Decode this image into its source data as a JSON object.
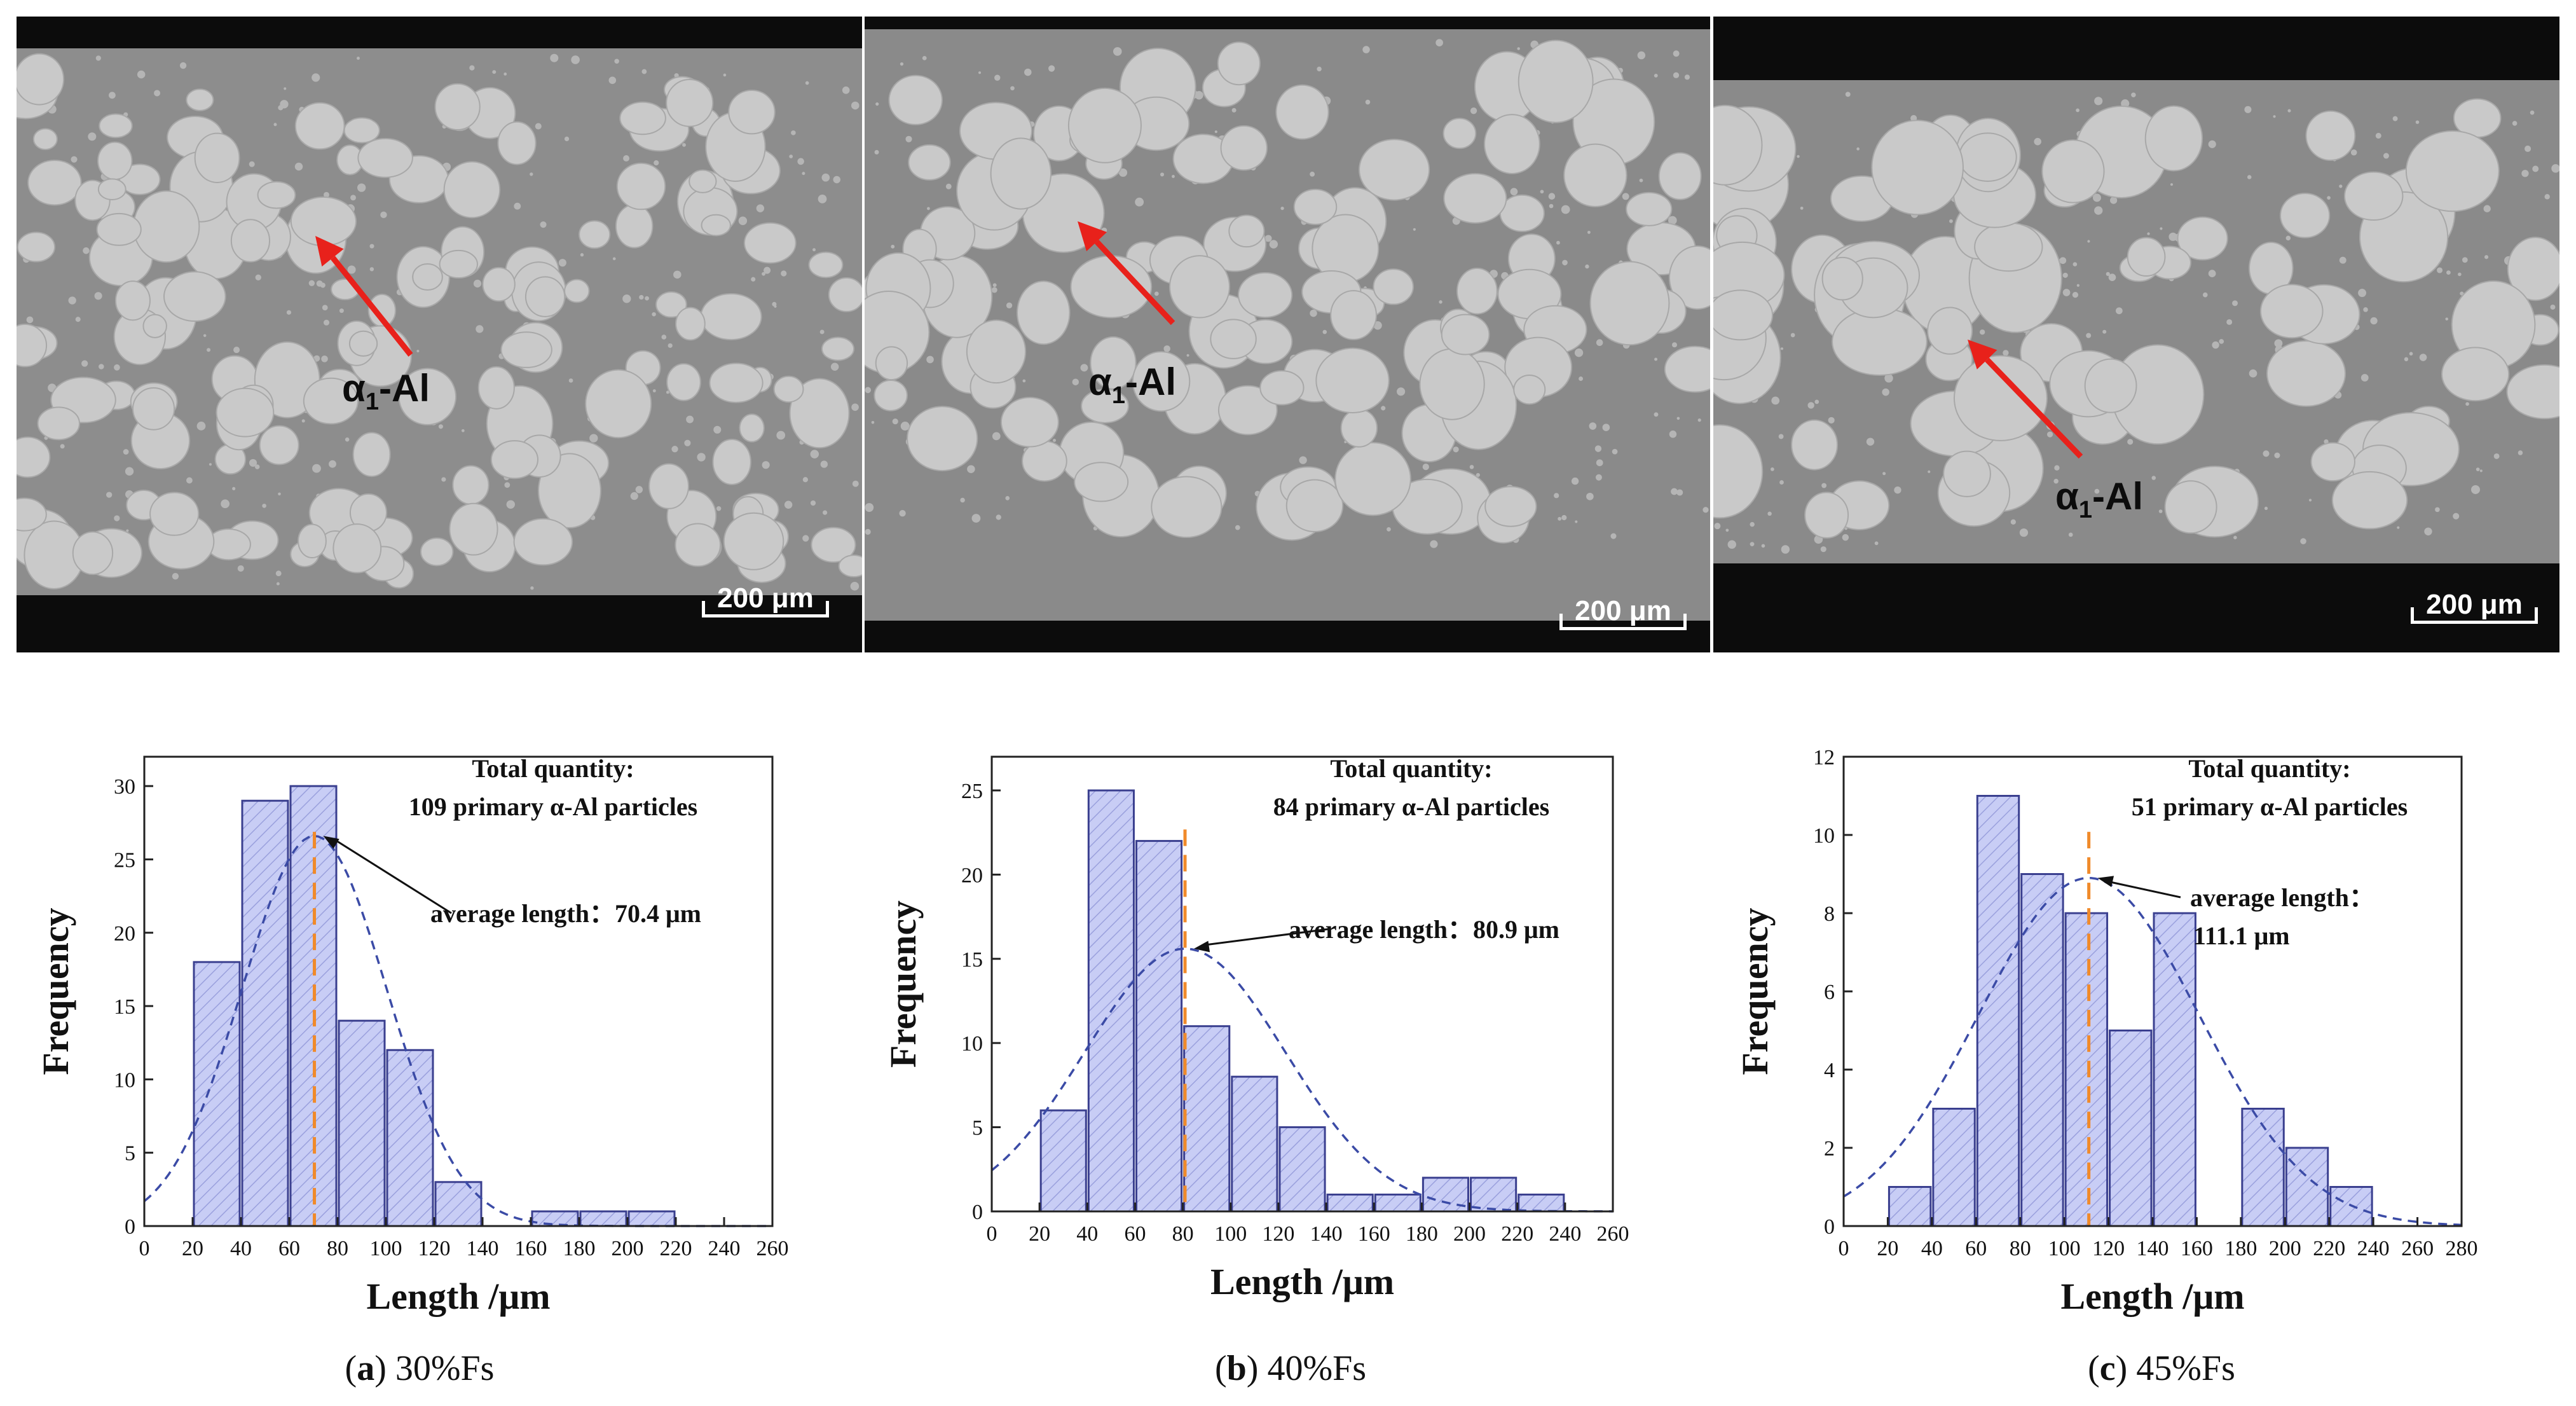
{
  "micrographs": [
    {
      "phase_label": "α",
      "phase_sub": "1",
      "phase_suffix": "-Al",
      "scale_label": "200 μm"
    },
    {
      "phase_label": "α",
      "phase_sub": "1",
      "phase_suffix": "-Al",
      "scale_label": "200 μm"
    },
    {
      "phase_label": "α",
      "phase_sub": "1",
      "phase_suffix": "-Al",
      "scale_label": "200 μm"
    }
  ],
  "captions": [
    {
      "letter": "a",
      "text": "30%Fs"
    },
    {
      "letter": "b",
      "text": "40%Fs"
    },
    {
      "letter": "c",
      "text": "45%Fs"
    }
  ],
  "colors": {
    "bar_fill": "#c8cdf5",
    "bar_stroke": "#3a3f8f",
    "fit_line": "#3b4ba6",
    "mean_line": "#f08a2a"
  },
  "chart_data": [
    {
      "type": "bar",
      "xlabel": "Length /μm",
      "ylabel": "Frequency",
      "xlim": [
        0,
        260
      ],
      "ylim": [
        0,
        32
      ],
      "xticks": [
        0,
        20,
        40,
        60,
        80,
        100,
        120,
        140,
        160,
        180,
        200,
        220,
        240,
        260
      ],
      "yticks": [
        0,
        5,
        10,
        15,
        20,
        25,
        30
      ],
      "bins": [
        [
          20,
          40
        ],
        [
          40,
          60
        ],
        [
          60,
          80
        ],
        [
          80,
          100
        ],
        [
          100,
          120
        ],
        [
          120,
          140
        ],
        [
          160,
          180
        ],
        [
          180,
          200
        ],
        [
          200,
          220
        ]
      ],
      "values": [
        18,
        29,
        30,
        14,
        12,
        3,
        1,
        1,
        1
      ],
      "fit": {
        "mean": 70.4,
        "sd": 30,
        "peak": 26.6
      },
      "annotation_total_title": "Total quantity:",
      "annotation_total_text": "109 primary α-Al particles",
      "annotation_avg_prefix": "average length：",
      "annotation_avg_value": "70.4 μm"
    },
    {
      "type": "bar",
      "xlabel": "Length /μm",
      "ylabel": "Frequency",
      "xlim": [
        0,
        260
      ],
      "ylim": [
        0,
        27
      ],
      "xticks": [
        0,
        20,
        40,
        60,
        80,
        100,
        120,
        140,
        160,
        180,
        200,
        220,
        240,
        260
      ],
      "yticks": [
        0,
        5,
        10,
        15,
        20,
        25
      ],
      "bins": [
        [
          20,
          40
        ],
        [
          40,
          60
        ],
        [
          60,
          80
        ],
        [
          80,
          100
        ],
        [
          100,
          120
        ],
        [
          120,
          140
        ],
        [
          140,
          160
        ],
        [
          160,
          180
        ],
        [
          180,
          200
        ],
        [
          200,
          220
        ],
        [
          220,
          240
        ]
      ],
      "values": [
        6,
        25,
        22,
        11,
        8,
        5,
        1,
        1,
        2,
        2,
        1
      ],
      "fit": {
        "mean": 80.9,
        "sd": 42,
        "peak": 15.6
      },
      "annotation_total_title": "Total quantity:",
      "annotation_total_text": "84 primary α-Al particles",
      "annotation_avg_prefix": "average length：",
      "annotation_avg_value": "80.9 μm"
    },
    {
      "type": "bar",
      "xlabel": "Length /μm",
      "ylabel": "Frequency",
      "xlim": [
        0,
        280
      ],
      "ylim": [
        0,
        12
      ],
      "xticks": [
        0,
        20,
        40,
        60,
        80,
        100,
        120,
        140,
        160,
        180,
        200,
        220,
        240,
        260,
        280
      ],
      "yticks": [
        0,
        2,
        4,
        6,
        8,
        10,
        12
      ],
      "bins": [
        [
          20,
          40
        ],
        [
          40,
          60
        ],
        [
          60,
          80
        ],
        [
          80,
          100
        ],
        [
          100,
          120
        ],
        [
          120,
          140
        ],
        [
          140,
          160
        ],
        [
          180,
          200
        ],
        [
          200,
          220
        ],
        [
          220,
          240
        ]
      ],
      "values": [
        1,
        3,
        11,
        9,
        8,
        5,
        8,
        3,
        2,
        1
      ],
      "fit": {
        "mean": 111.1,
        "sd": 50,
        "peak": 8.9
      },
      "annotation_total_title": "Total quantity:",
      "annotation_total_text": "51 primary α-Al particles",
      "annotation_avg_prefix": "average length：",
      "annotation_avg_value": "111.1 μm"
    }
  ]
}
